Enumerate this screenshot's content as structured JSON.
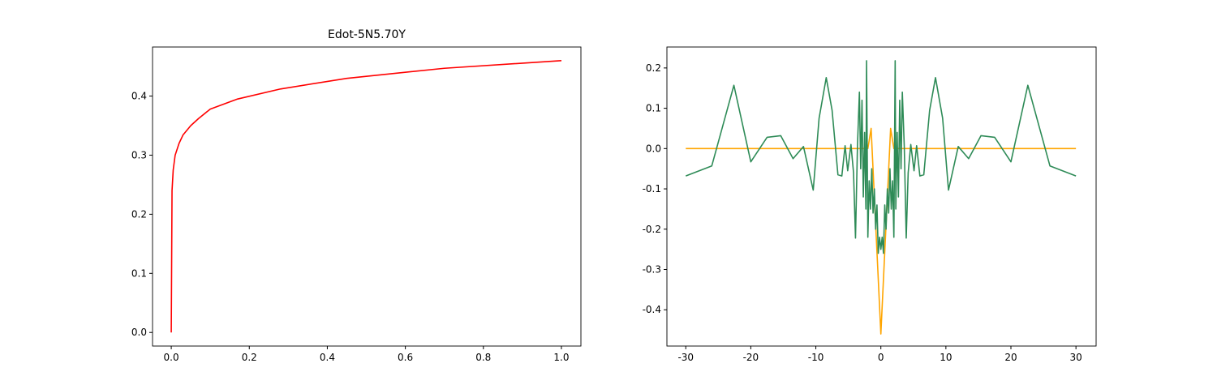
{
  "chart_data": [
    {
      "type": "line",
      "title": "Edot-5N5.70Y",
      "xlim": [
        -0.048,
        1.05
      ],
      "ylim": [
        -0.023,
        0.483
      ],
      "xticks": [
        {
          "value": 0,
          "label": "0.0"
        },
        0.2,
        0.4,
        0.6,
        0.8,
        {
          "value": 1,
          "label": "1.0"
        }
      ],
      "yticks": [
        {
          "value": 0,
          "label": "0.0"
        },
        0.1,
        0.2,
        0.3,
        0.4
      ],
      "series": [
        {
          "color": "#ff0000",
          "x": [
            0,
            0.002,
            0.005,
            0.01,
            0.02,
            0.03,
            0.05,
            0.07,
            0.1,
            0.17,
            0.28,
            0.45,
            0.7,
            1.0
          ],
          "values": [
            0,
            0.24,
            0.275,
            0.3,
            0.32,
            0.334,
            0.35,
            0.362,
            0.378,
            0.395,
            0.412,
            0.43,
            0.447,
            0.46
          ]
        }
      ]
    },
    {
      "type": "line",
      "xlim": [
        -32.9,
        33.1
      ],
      "ylim": [
        -0.49,
        0.252
      ],
      "xticks": [
        -30,
        -20,
        -10,
        0,
        10,
        20,
        30
      ],
      "yticks": [
        -0.4,
        -0.3,
        -0.2,
        -0.1,
        {
          "value": 0,
          "label": "0.0"
        },
        0.1,
        0.2
      ],
      "series": [
        {
          "color": "#ffa500",
          "x": [
            -30,
            -2,
            -1.5,
            0,
            1.5,
            2,
            30
          ],
          "values": [
            0,
            0,
            0.05,
            -0.46,
            0.05,
            0,
            0
          ]
        },
        {
          "color": "#2e8b57",
          "x": [
            -30,
            -26,
            -22.6,
            -20,
            -17.5,
            -15.4,
            -13.5,
            -11.9,
            -10.4,
            -9.5,
            -8.4,
            -7.5,
            -6.6,
            -6.0,
            -5.5,
            -5.1,
            -4.6,
            -4.2,
            -3.9,
            -3.6,
            -3.3,
            -3.1,
            -2.9,
            -2.7,
            -2.5,
            -2.3,
            -2.2,
            -2.0,
            -1.8,
            -1.6,
            -1.4,
            -1.2,
            -1.0,
            -0.8,
            -0.6,
            -0.4,
            -0.2,
            0,
            0.2,
            0.4,
            0.6,
            0.8,
            1.0,
            1.2,
            1.4,
            1.6,
            1.8,
            2.0,
            2.2,
            2.3,
            2.5,
            2.7,
            2.9,
            3.1,
            3.3,
            3.6,
            3.9,
            4.2,
            4.6,
            5.1,
            5.5,
            6.0,
            6.6,
            7.5,
            8.4,
            9.5,
            10.4,
            11.9,
            13.5,
            15.4,
            17.5,
            20,
            22.6,
            26,
            30
          ],
          "values": [
            -0.068,
            -0.043,
            0.157,
            -0.033,
            0.028,
            0.032,
            -0.025,
            0.005,
            -0.103,
            0.075,
            0.176,
            0.095,
            -0.065,
            -0.068,
            0.007,
            -0.055,
            0.01,
            -0.06,
            -0.222,
            0.005,
            0.14,
            -0.05,
            0.12,
            -0.12,
            0.04,
            -0.15,
            0.218,
            -0.22,
            -0.08,
            -0.15,
            -0.05,
            -0.16,
            -0.1,
            -0.2,
            -0.14,
            -0.26,
            -0.22,
            -0.25,
            -0.22,
            -0.26,
            -0.14,
            -0.2,
            -0.1,
            -0.16,
            -0.05,
            -0.15,
            -0.08,
            -0.22,
            0.218,
            -0.15,
            0.04,
            -0.12,
            0.12,
            -0.05,
            0.14,
            0.005,
            -0.222,
            -0.06,
            0.01,
            -0.055,
            0.007,
            -0.068,
            -0.065,
            0.095,
            0.176,
            0.075,
            -0.103,
            0.005,
            -0.025,
            0.032,
            0.028,
            -0.033,
            0.157,
            -0.043,
            -0.068
          ]
        }
      ]
    }
  ]
}
